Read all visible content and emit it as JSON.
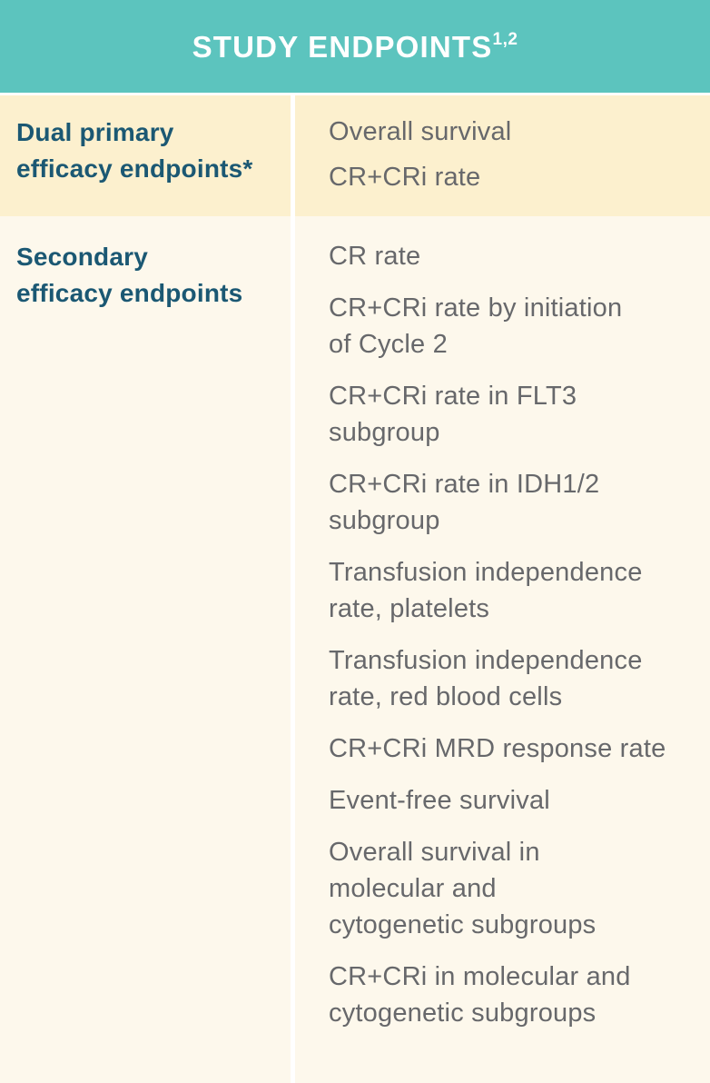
{
  "header": {
    "title": "STUDY ENDPOINTS",
    "superscript": "1,2"
  },
  "colors": {
    "header-bg": "#5cc4be",
    "header-text": "#ffffff",
    "row-primary-bg": "#fcf0ce",
    "row-secondary-bg": "#fdf8ec",
    "label-text": "#1b5873",
    "item-text": "#67686b",
    "divider": "#ffffff"
  },
  "rows": [
    {
      "label": "Dual primary\nefficacy endpoints*",
      "items": [
        "Overall survival",
        "CR+CRi rate"
      ]
    },
    {
      "label": "Secondary\nefficacy endpoints",
      "items": [
        "CR rate",
        "CR+CRi rate by initiation\nof Cycle 2",
        "CR+CRi rate in FLT3\nsubgroup",
        "CR+CRi rate in IDH1/2\nsubgroup",
        "Transfusion independence\nrate, platelets",
        "Transfusion independence\nrate, red blood cells",
        "CR+CRi MRD response rate",
        "Event-free survival",
        "Overall survival in\nmolecular and\ncytogenetic subgroups",
        "CR+CRi in molecular and\ncytogenetic subgroups"
      ]
    }
  ]
}
